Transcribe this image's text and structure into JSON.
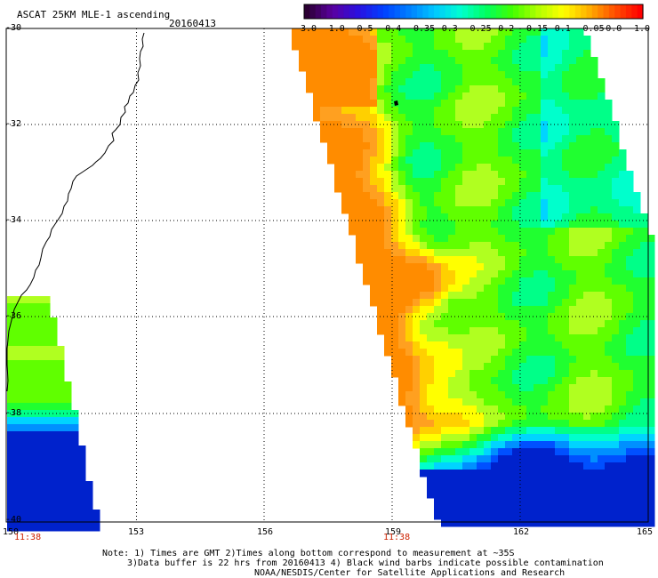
{
  "header": {
    "title": "ASCAT 25KM MLE-1 ascending",
    "date": "20160413"
  },
  "colorbar": {
    "labels": [
      "-3.0",
      "-1.0",
      "-0.5",
      "-0.4",
      "-0.35",
      "-0.3",
      "-0.25",
      "-0.2",
      "-0.15",
      "-0.1",
      "-0.05",
      "0.0",
      "1.0"
    ],
    "colors": [
      "#2b0033",
      "#5a00a0",
      "#2a10e0",
      "#0040ff",
      "#0080ff",
      "#00c8ff",
      "#00ffd0",
      "#00ff60",
      "#40ff00",
      "#b0ff00",
      "#ffff00",
      "#ffb000",
      "#ff5000",
      "#ff0000"
    ]
  },
  "map": {
    "x_axis_ticks": [
      "150",
      "153",
      "156",
      "159",
      "162",
      "165"
    ],
    "y_axis_ticks": [
      "-30",
      "-32",
      "-34",
      "-36",
      "-38",
      "-40"
    ],
    "lon_range": [
      150,
      165
    ],
    "lat_range": [
      -30,
      -40
    ],
    "pass_times": [
      "11:38",
      "11:38"
    ],
    "time_color": "#cc2200"
  },
  "footer": {
    "note_line1": "Note: 1) Times are GMT 2)Times along bottom correspond to measurement at ~35S",
    "note_line2": "3)Data buffer is 22 hrs from 20160413 4) Black wind barbs indicate possible contamination",
    "note_line3": "NOAA/NESDIS/Center for Satellite Applications and Research"
  }
}
